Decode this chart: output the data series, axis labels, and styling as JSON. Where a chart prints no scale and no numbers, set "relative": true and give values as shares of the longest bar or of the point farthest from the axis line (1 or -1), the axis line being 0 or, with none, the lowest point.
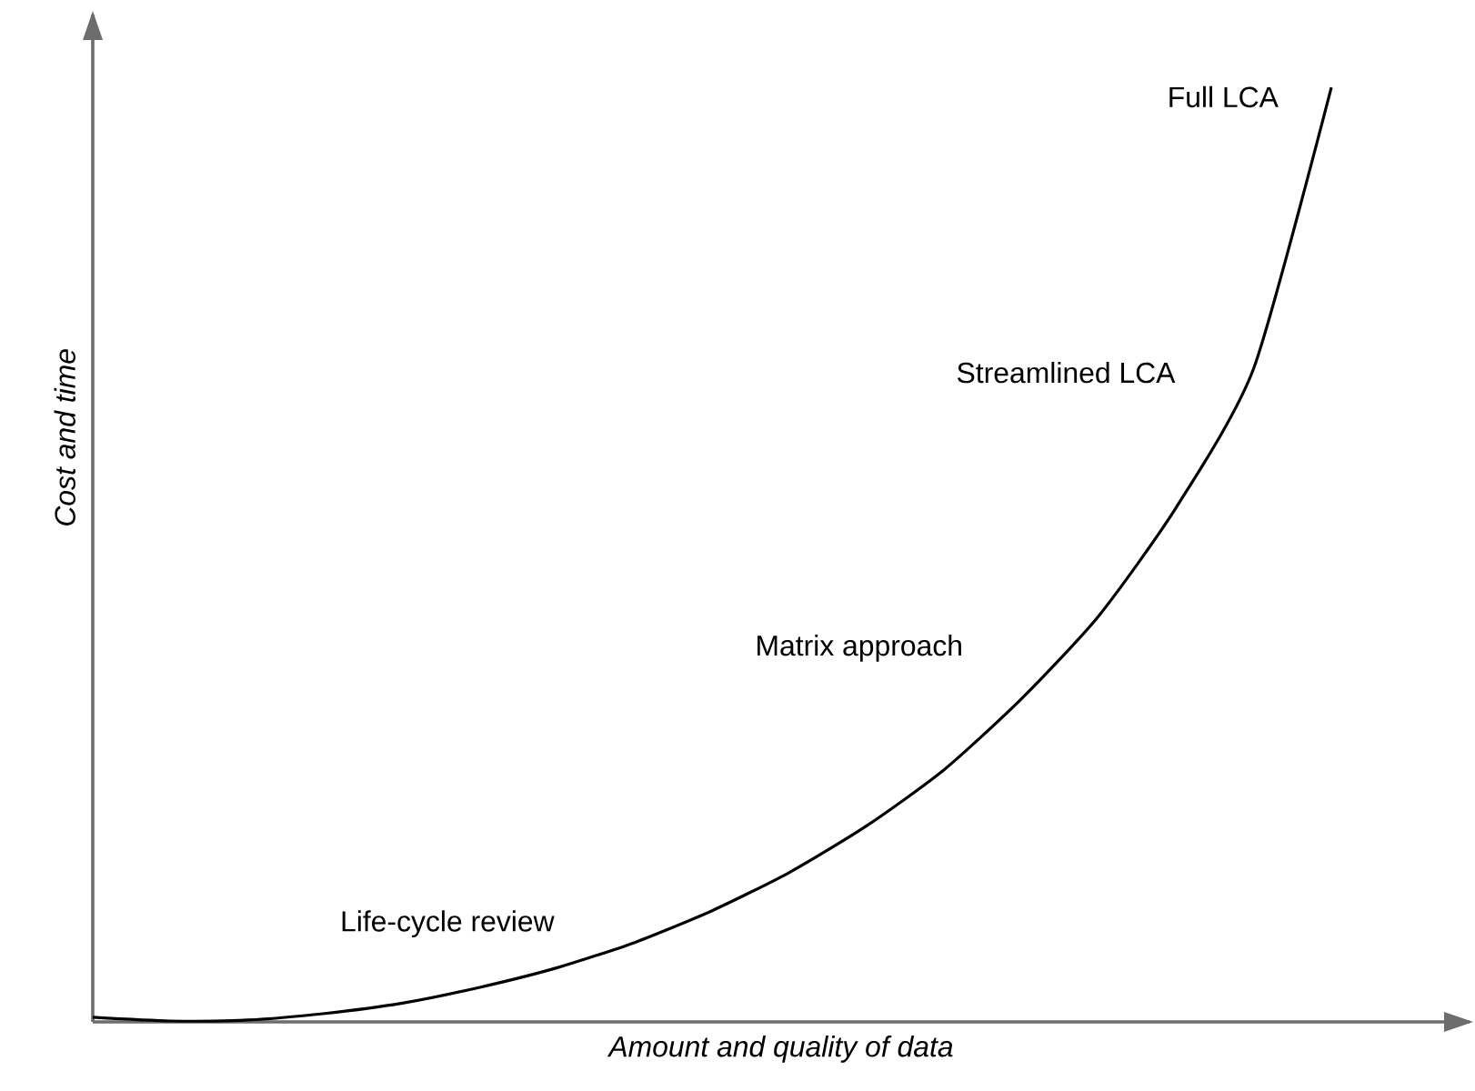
{
  "chart_data": {
    "type": "line",
    "relative": true,
    "xlabel": "Amount and quality of data",
    "ylabel": "Cost and time",
    "categories": [
      null,
      null,
      null,
      null,
      null,
      null,
      null,
      null,
      null,
      null,
      null,
      null,
      null,
      null,
      null,
      null,
      null
    ],
    "values": [
      0.005,
      0.001,
      0.002,
      0.009,
      0.02,
      0.037,
      0.058,
      0.085,
      0.119,
      0.16,
      0.21,
      0.27,
      0.346,
      0.435,
      0.551,
      0.7,
      1.0
    ],
    "color": "#000000",
    "marker": "none",
    "line_style": "solid",
    "annotations": [
      "Full LCA",
      "Streamlined LCA",
      "Matrix approach",
      "Life-cycle review"
    ]
  }
}
